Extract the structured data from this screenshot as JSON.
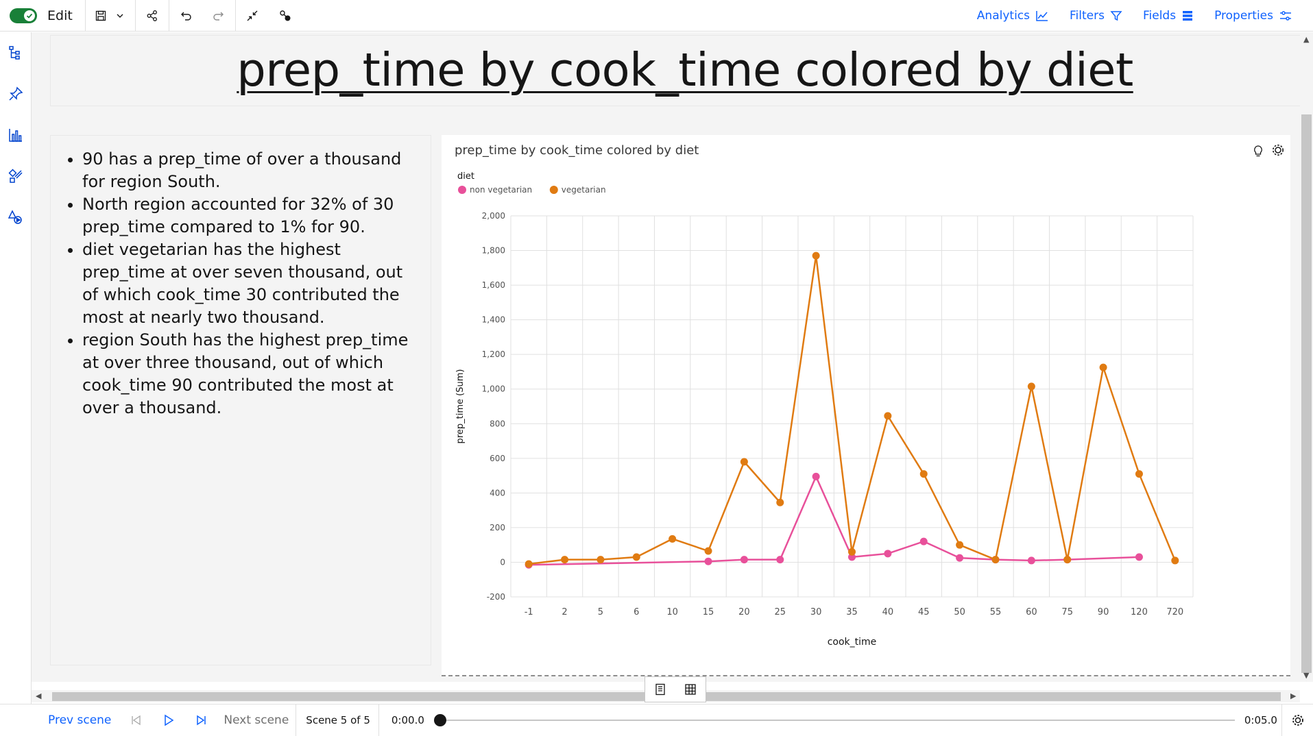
{
  "toolbar": {
    "edit_label": "Edit",
    "analytics_label": "Analytics",
    "filters_label": "Filters",
    "fields_label": "Fields",
    "properties_label": "Properties"
  },
  "canvas": {
    "title": "prep_time by cook_time colored by diet"
  },
  "insights": [
    "90 has a prep_time of over a thousand for region South.",
    "North region accounted for 32% of 30 prep_time compared to 1% for 90.",
    "diet vegetarian has the highest prep_time at over seven thousand, out of which cook_time 30 contributed the most at nearly two thousand.",
    "region South has the highest prep_time at over three thousand, out of which cook_time 90 contributed the most at over a thousand."
  ],
  "chart_data": {
    "type": "line",
    "title": "prep_time by cook_time colored by diet",
    "legend_title": "diet",
    "legend_position": "top-left",
    "xlabel": "cook_time",
    "ylabel": "prep_time (Sum)",
    "categories": [
      "-1",
      "2",
      "5",
      "6",
      "10",
      "15",
      "20",
      "25",
      "30",
      "35",
      "40",
      "45",
      "50",
      "55",
      "60",
      "75",
      "90",
      "120",
      "720"
    ],
    "ylim": [
      -200,
      2000
    ],
    "yticks": [
      -200,
      0,
      200,
      400,
      600,
      800,
      1000,
      1200,
      1400,
      1600,
      1800,
      2000
    ],
    "yticks_labels": [
      "-200",
      "0",
      "200",
      "400",
      "600",
      "800",
      "1,000",
      "1,200",
      "1,400",
      "1,600",
      "1,800",
      "2,000"
    ],
    "grid": true,
    "series": [
      {
        "name": "non vegetarian",
        "color": "#e8509a",
        "values": [
          -15,
          null,
          null,
          null,
          null,
          5,
          15,
          15,
          495,
          30,
          50,
          120,
          25,
          15,
          10,
          15,
          null,
          30,
          null
        ]
      },
      {
        "name": "vegetarian",
        "color": "#e07b12",
        "values": [
          -10,
          15,
          15,
          30,
          135,
          65,
          580,
          345,
          1770,
          60,
          845,
          510,
          100,
          15,
          1015,
          15,
          1125,
          510,
          10
        ]
      }
    ]
  },
  "player": {
    "prev_label": "Prev scene",
    "next_label": "Next scene",
    "scene_label": "Scene 5 of 5",
    "time_start": "0:00.0",
    "time_end": "0:05.0"
  }
}
